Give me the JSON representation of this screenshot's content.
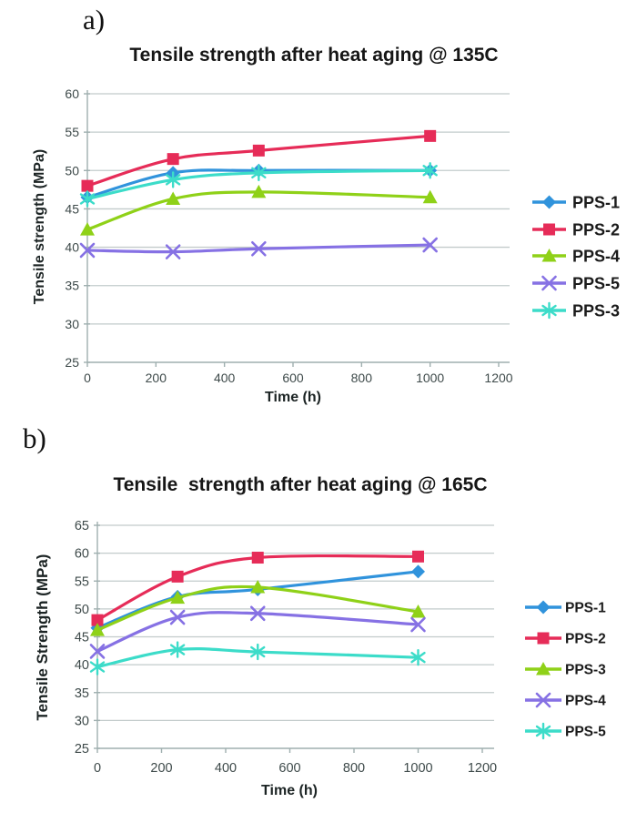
{
  "colors": {
    "background": "#ffffff",
    "grid": "#c2cbcb",
    "axis": "#9fafaf",
    "tick_text": "#3e4a4a",
    "title_text": "#161616",
    "axis_label_text": "#1c2424",
    "legend_text": "#1b1b1b",
    "series_blue": "#3093dc",
    "series_red": "#e62c58",
    "series_green": "#8fd118",
    "series_purple": "#8671e4",
    "series_cyan": "#3cdcc9"
  },
  "chart_data": [
    {
      "type": "line",
      "panel_label": "a)",
      "title": "Tensile strength after heat aging @ 135C",
      "xlabel": "Time (h)",
      "ylabel": "Tensile strength (MPa)",
      "x": [
        0,
        250,
        500,
        1000
      ],
      "xlim": [
        0,
        1200
      ],
      "ylim": [
        25,
        60
      ],
      "xticks": [
        0,
        200,
        400,
        600,
        800,
        1000,
        1200
      ],
      "yticks": [
        25,
        30,
        35,
        40,
        45,
        50,
        55,
        60
      ],
      "grid": true,
      "legend_position": "right",
      "series": [
        {
          "name": "PPS-1",
          "marker": "diamond",
          "color": "#3093dc",
          "values": [
            46.5,
            49.7,
            50.0,
            50.0
          ]
        },
        {
          "name": "PPS-2",
          "marker": "square",
          "color": "#e62c58",
          "values": [
            48.0,
            51.5,
            52.6,
            54.5
          ]
        },
        {
          "name": "PPS-4",
          "marker": "triangle",
          "color": "#8fd118",
          "values": [
            42.3,
            46.3,
            47.2,
            46.5
          ]
        },
        {
          "name": "PPS-5",
          "marker": "x",
          "color": "#8671e4",
          "values": [
            39.6,
            39.4,
            39.8,
            40.3
          ]
        },
        {
          "name": "PPS-3",
          "marker": "asterisk",
          "color": "#3cdcc9",
          "values": [
            46.3,
            48.8,
            49.7,
            50.0
          ]
        }
      ]
    },
    {
      "type": "line",
      "panel_label": "b)",
      "title": "Tensile  strength after heat aging @ 165C",
      "xlabel": "Time (h)",
      "ylabel": "Tensile Strength (MPa)",
      "x": [
        0,
        250,
        500,
        1000
      ],
      "xlim": [
        0,
        1200
      ],
      "ylim": [
        25,
        65
      ],
      "xticks": [
        0,
        200,
        400,
        600,
        800,
        1000,
        1200
      ],
      "yticks": [
        25,
        30,
        35,
        40,
        45,
        50,
        55,
        60,
        65
      ],
      "grid": true,
      "legend_position": "right",
      "series": [
        {
          "name": "PPS-1",
          "marker": "diamond",
          "color": "#3093dc",
          "values": [
            46.6,
            52.2,
            53.5,
            56.7
          ]
        },
        {
          "name": "PPS-2",
          "marker": "square",
          "color": "#e62c58",
          "values": [
            48.0,
            55.8,
            59.2,
            59.4
          ]
        },
        {
          "name": "PPS-3",
          "marker": "triangle",
          "color": "#8fd118",
          "values": [
            46.2,
            52.0,
            53.9,
            49.5
          ]
        },
        {
          "name": "PPS-4",
          "marker": "x",
          "color": "#8671e4",
          "values": [
            42.4,
            48.5,
            49.2,
            47.2
          ]
        },
        {
          "name": "PPS-5",
          "marker": "asterisk",
          "color": "#3cdcc9",
          "values": [
            39.6,
            42.7,
            42.3,
            41.3
          ]
        }
      ]
    }
  ]
}
